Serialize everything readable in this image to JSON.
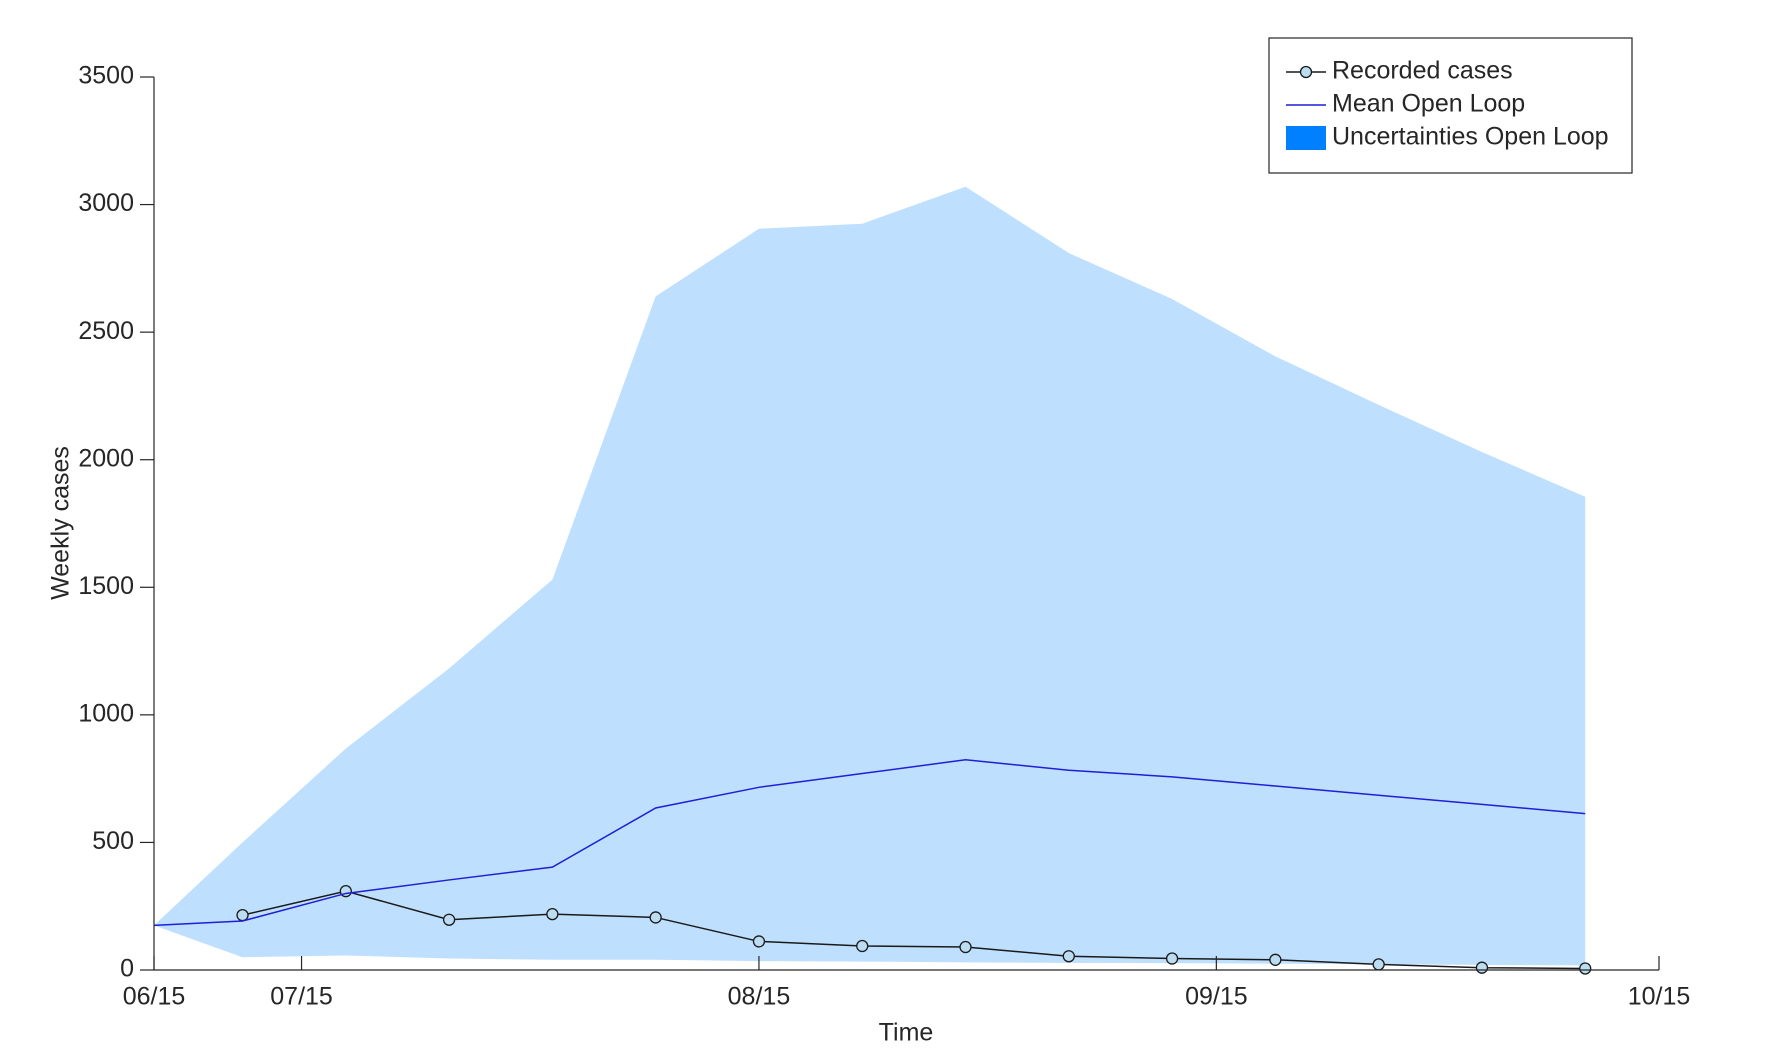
{
  "chart_data": {
    "type": "line",
    "xlabel": "Time",
    "ylabel": "Weekly cases",
    "x": [
      186,
      192,
      199,
      206,
      213,
      220,
      227,
      234,
      241,
      248,
      255,
      262,
      269,
      276,
      283
    ],
    "xlim": [
      186,
      288
    ],
    "xticks": [
      {
        "value": 186,
        "label": "06/15"
      },
      {
        "value": 196,
        "label": "07/15"
      },
      {
        "value": 227,
        "label": "08/15"
      },
      {
        "value": 258,
        "label": "09/15"
      },
      {
        "value": 288,
        "label": "10/15"
      }
    ],
    "ylim": [
      0,
      3500
    ],
    "yticks": [
      0,
      500,
      1000,
      1500,
      2000,
      2500,
      3000,
      3500
    ],
    "grid": false,
    "legend_position": "upper right",
    "series": [
      {
        "name": "Recorded cases",
        "color": "#1a1a1a",
        "marker_color": "#bcdcf2",
        "values": [
          null,
          215,
          309,
          197,
          219,
          206,
          112,
          94,
          90,
          54,
          45,
          40,
          22,
          9,
          6
        ]
      },
      {
        "name": "Mean Open Loop",
        "color": "#1f1fd6",
        "values": [
          175,
          192,
          300,
          353,
          403,
          635,
          716,
          770,
          824,
          783,
          757,
          721,
          685,
          649,
          613
        ]
      },
      {
        "name": "Uncertainties Open Loop",
        "color": "#0080ff",
        "lower": [
          175,
          50,
          57,
          45,
          40,
          40,
          35,
          33,
          30,
          28,
          27,
          25,
          22,
          20,
          18
        ],
        "upper": [
          175,
          500,
          868,
          1182,
          1530,
          2640,
          2905,
          2925,
          3070,
          2810,
          2630,
          2405,
          2215,
          2030,
          1855
        ]
      }
    ]
  }
}
